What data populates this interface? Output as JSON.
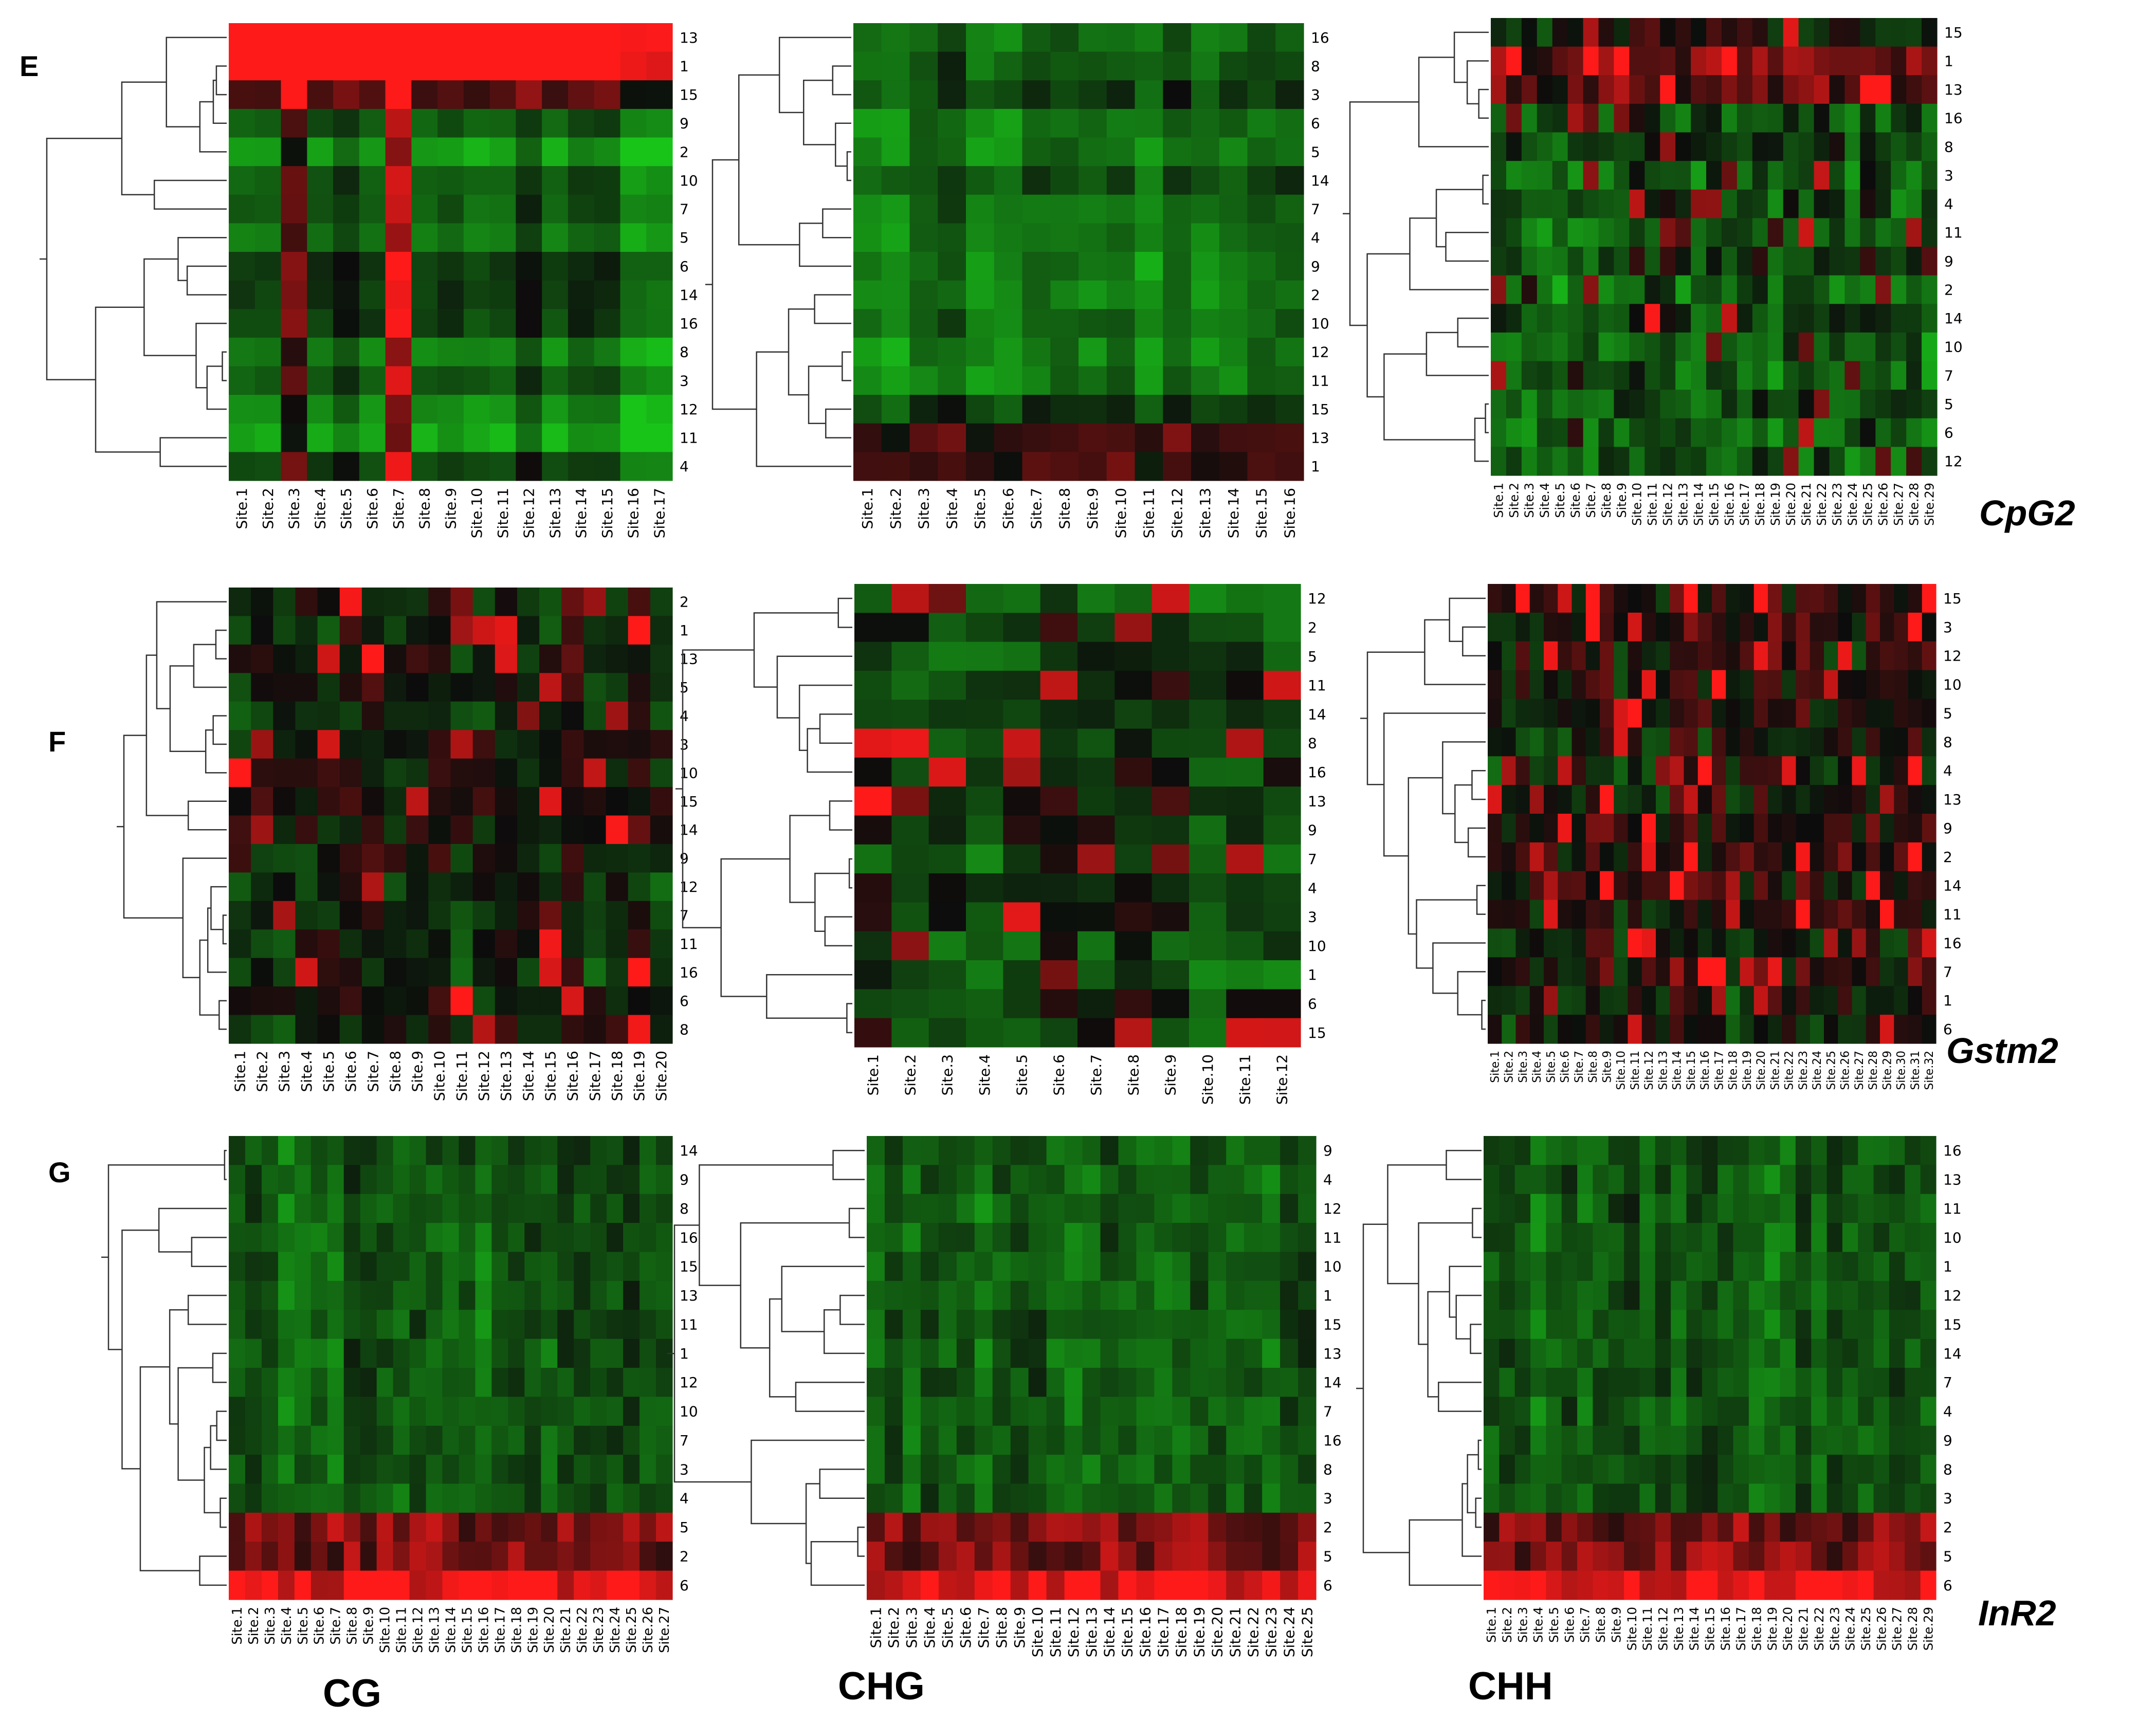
{
  "figure": {
    "panel_letters": [
      "E",
      "F",
      "G"
    ],
    "gene_labels": [
      "CpG2",
      "Gstm2",
      "InR2"
    ],
    "context_labels": [
      "CG",
      "CHG",
      "CHH"
    ]
  },
  "colors": {
    "low": "#19c419",
    "mid": "#0c0c0c",
    "high": "#ff1a1a"
  },
  "chart_data": [
    {
      "type": "heatmap",
      "panel": "E",
      "gene": "CpG2",
      "context": "CG",
      "row_labels": [
        "13",
        "1",
        "15",
        "9",
        "2",
        "10",
        "7",
        "5",
        "6",
        "14",
        "16",
        "8",
        "3",
        "12",
        "11",
        "4"
      ],
      "n_sites": 17,
      "seed": 11,
      "pattern": "blocky",
      "bias": 0.0
    },
    {
      "type": "heatmap",
      "panel": "E",
      "gene": "CpG2",
      "context": "CHG",
      "row_labels": [
        "16",
        "8",
        "3",
        "6",
        "5",
        "14",
        "7",
        "4",
        "9",
        "2",
        "10",
        "12",
        "11",
        "15",
        "13",
        "1"
      ],
      "n_sites": 16,
      "seed": 12,
      "pattern": "green",
      "bias": 0.0
    },
    {
      "type": "heatmap",
      "panel": "E",
      "gene": "CpG2",
      "context": "CHH",
      "row_labels": [
        "15",
        "1",
        "13",
        "16",
        "8",
        "3",
        "4",
        "11",
        "9",
        "2",
        "14",
        "10",
        "7",
        "5",
        "6",
        "12"
      ],
      "n_sites": 29,
      "seed": 13,
      "pattern": "mixed",
      "bias": 0.0
    },
    {
      "type": "heatmap",
      "panel": "F",
      "gene": "Gstm2",
      "context": "CG",
      "row_labels": [
        "2",
        "1",
        "13",
        "5",
        "4",
        "3",
        "10",
        "15",
        "14",
        "9",
        "12",
        "7",
        "11",
        "16",
        "6",
        "8"
      ],
      "n_sites": 20,
      "seed": 21,
      "pattern": "mixed",
      "bias": 0.1
    },
    {
      "type": "heatmap",
      "panel": "F",
      "gene": "Gstm2",
      "context": "CHG",
      "row_labels": [
        "12",
        "2",
        "5",
        "11",
        "14",
        "8",
        "16",
        "13",
        "9",
        "7",
        "4",
        "3",
        "10",
        "1",
        "6",
        "15"
      ],
      "n_sites": 12,
      "seed": 22,
      "pattern": "mixed",
      "bias": 0.05
    },
    {
      "type": "heatmap",
      "panel": "F",
      "gene": "Gstm2",
      "context": "CHH",
      "row_labels": [
        "15",
        "3",
        "12",
        "10",
        "5",
        "8",
        "4",
        "13",
        "9",
        "2",
        "14",
        "11",
        "16",
        "7",
        "1",
        "6"
      ],
      "n_sites": 32,
      "seed": 23,
      "pattern": "mixed",
      "bias": 0.12
    },
    {
      "type": "heatmap",
      "panel": "G",
      "gene": "InR2",
      "context": "CG",
      "row_labels": [
        "14",
        "9",
        "8",
        "16",
        "15",
        "13",
        "11",
        "1",
        "12",
        "10",
        "7",
        "3",
        "4",
        "5",
        "2",
        "6"
      ],
      "n_sites": 27,
      "seed": 31,
      "pattern": "bottomred",
      "bias": 0.0
    },
    {
      "type": "heatmap",
      "panel": "G",
      "gene": "InR2",
      "context": "CHG",
      "row_labels": [
        "9",
        "4",
        "12",
        "11",
        "10",
        "1",
        "15",
        "13",
        "14",
        "7",
        "16",
        "8",
        "3",
        "2",
        "5",
        "6"
      ],
      "n_sites": 25,
      "seed": 32,
      "pattern": "bottomred",
      "bias": 0.0
    },
    {
      "type": "heatmap",
      "panel": "G",
      "gene": "InR2",
      "context": "CHH",
      "row_labels": [
        "16",
        "13",
        "11",
        "10",
        "1",
        "12",
        "15",
        "14",
        "7",
        "4",
        "9",
        "8",
        "3",
        "2",
        "5",
        "6"
      ],
      "n_sites": 29,
      "seed": 33,
      "pattern": "bottomred",
      "bias": 0.0
    }
  ]
}
